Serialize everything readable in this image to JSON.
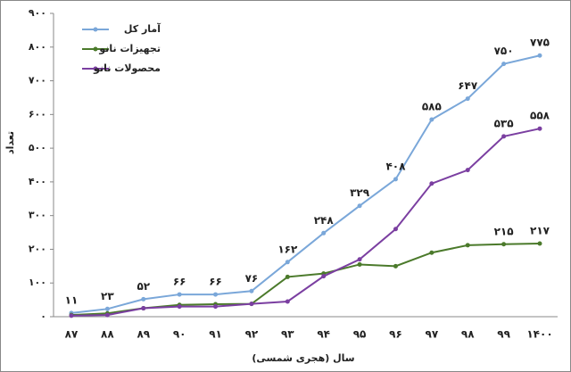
{
  "chart_data": {
    "type": "line",
    "y_label": "تعداد",
    "x_label": "سال (هجری شمسی)",
    "categories": [
      "۸۷",
      "۸۸",
      "۸۹",
      "۹۰",
      "۹۱",
      "۹۲",
      "۹۳",
      "۹۴",
      "۹۵",
      "۹۶",
      "۹۷",
      "۹۸",
      "۹۹",
      "۱۴۰۰"
    ],
    "series": [
      {
        "name": "آمار کل",
        "color": "#7aa7d9",
        "values": [
          11,
          23,
          52,
          66,
          66,
          76,
          162,
          248,
          329,
          408,
          585,
          647,
          750,
          775
        ],
        "value_labels": [
          "۱۱",
          "۲۳",
          "۵۲",
          "۶۶",
          "۶۶",
          "۷۶",
          "۱۶۲",
          "۲۴۸",
          "۳۲۹",
          "۴۰۸",
          "۵۸۵",
          "۶۴۷",
          "۷۵۰",
          "۷۷۵"
        ]
      },
      {
        "name": "تجهیزات نانو",
        "color": "#4b7a2b",
        "values": [
          5,
          10,
          25,
          35,
          37,
          38,
          118,
          128,
          155,
          150,
          190,
          212,
          215,
          217
        ],
        "value_labels": [
          null,
          null,
          null,
          null,
          null,
          null,
          null,
          null,
          null,
          null,
          null,
          null,
          "۲۱۵",
          "۲۱۷"
        ]
      },
      {
        "name": "محصولات نانو",
        "color": "#7b3fa1",
        "values": [
          3,
          5,
          25,
          30,
          30,
          38,
          45,
          120,
          170,
          260,
          395,
          435,
          535,
          558
        ],
        "value_labels": [
          null,
          null,
          null,
          null,
          null,
          null,
          null,
          null,
          null,
          null,
          null,
          null,
          "۵۳۵",
          "۵۵۸"
        ]
      }
    ],
    "ylim": [
      0,
      900
    ],
    "yticks": [
      {
        "value": 0,
        "label": "۰"
      },
      {
        "value": 100,
        "label": "۱۰۰"
      },
      {
        "value": 200,
        "label": "۲۰۰"
      },
      {
        "value": 300,
        "label": "۳۰۰"
      },
      {
        "value": 400,
        "label": "۴۰۰"
      },
      {
        "value": 500,
        "label": "۵۰۰"
      },
      {
        "value": 600,
        "label": "۶۰۰"
      },
      {
        "value": 700,
        "label": "۷۰۰"
      },
      {
        "value": 800,
        "label": "۸۰۰"
      },
      {
        "value": 900,
        "label": "۹۰۰"
      }
    ],
    "legend": "upper-left"
  }
}
